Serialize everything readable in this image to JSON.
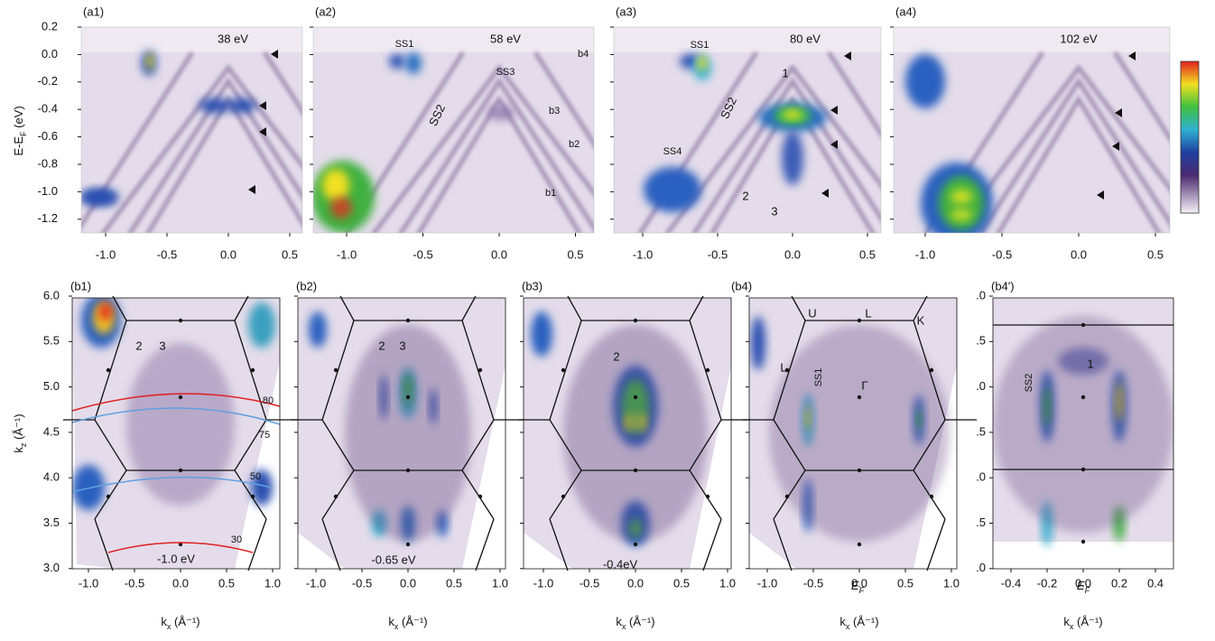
{
  "top": {
    "y_label": {
      "main": "E-E",
      "sub": "F",
      "unit": " (eV)"
    },
    "y_ticks": [
      "0.2",
      "0.0",
      "-0.2",
      "-0.4",
      "-0.6",
      "-0.8",
      "-1.0",
      "-1.2"
    ],
    "panels": [
      {
        "label": "(a1)",
        "x_ticks": [
          "-1.0",
          "-0.5",
          "0.0",
          "0.5"
        ],
        "annotations": [
          "38 eV"
        ]
      },
      {
        "label": "(a2)",
        "x_ticks": [
          "-1.0",
          "-0.5",
          "0.0",
          "0.5"
        ],
        "annotations": [
          "SS1",
          "58 eV",
          "SS3",
          "SS2",
          "b4",
          "b3",
          "b2",
          "b1"
        ]
      },
      {
        "label": "(a3)",
        "x_ticks": [
          "-1.0",
          "-0.5",
          "0.0",
          "0.5"
        ],
        "annotations": [
          "SS1",
          "80 eV",
          "1",
          "SS2",
          "SS4",
          "2",
          "3"
        ]
      },
      {
        "label": "(a4)",
        "x_ticks": [
          "-1.0",
          "-0.5",
          "0.0",
          "0.5"
        ],
        "annotations": [
          "102 eV"
        ]
      }
    ]
  },
  "bottom": {
    "y_label": {
      "main": "k",
      "sub": "z",
      "unit": " (Å⁻¹)"
    },
    "x_label": {
      "main": "k",
      "sub": "x",
      "unit": " (Å⁻¹)"
    },
    "y_ticks": [
      "6.0",
      "5.5",
      "5.0",
      "4.5",
      "4.0",
      "3.5",
      "3.0"
    ],
    "panels": [
      {
        "label": "(b1)",
        "x_ticks": [
          "-1.0",
          "-0.5",
          "0.0",
          "0.5",
          "1.0"
        ],
        "annotations": [
          {
            "text": "2"
          },
          {
            "text": "3"
          },
          {
            "text": "80"
          },
          {
            "text": "75"
          },
          {
            "text": "50"
          },
          {
            "text": "30"
          },
          {
            "text": "-1.0 eV"
          }
        ]
      },
      {
        "label": "(b2)",
        "x_ticks": [
          "-1.0",
          "-0.5",
          "0.0",
          "0.5",
          "1.0"
        ],
        "annotations": [
          {
            "text": "2"
          },
          {
            "text": "3"
          },
          {
            "text": "-0.65 eV"
          }
        ]
      },
      {
        "label": "(b3)",
        "x_ticks": [
          "-1.0",
          "-0.5",
          "0.0",
          "0.5",
          "1.0"
        ],
        "annotations": [
          {
            "text": "2"
          },
          {
            "text": "-0.4eV"
          }
        ]
      },
      {
        "label": "(b4)",
        "x_ticks": [
          "-1.0",
          "-0.5",
          "0.0",
          "0.5",
          "1.0"
        ],
        "annotations": [
          {
            "text": "U"
          },
          {
            "text": "L"
          },
          {
            "text": "K"
          },
          {
            "text": "L"
          },
          {
            "text": "SS1"
          },
          {
            "text": "Γ"
          },
          {
            "text": "E",
            "sub": "F"
          }
        ]
      },
      {
        "label": "(b4')",
        "x_ticks": [
          "-0.4",
          "-0.2",
          "0.0",
          "0.2",
          "0.4"
        ],
        "y_ticks": [
          ".0",
          ".5",
          ".0",
          ".5",
          ".0",
          ".5",
          ".0"
        ],
        "annotations": [
          {
            "text": "1"
          },
          {
            "text": "SS2"
          },
          {
            "text": "E",
            "sub": "F"
          }
        ]
      }
    ]
  }
}
